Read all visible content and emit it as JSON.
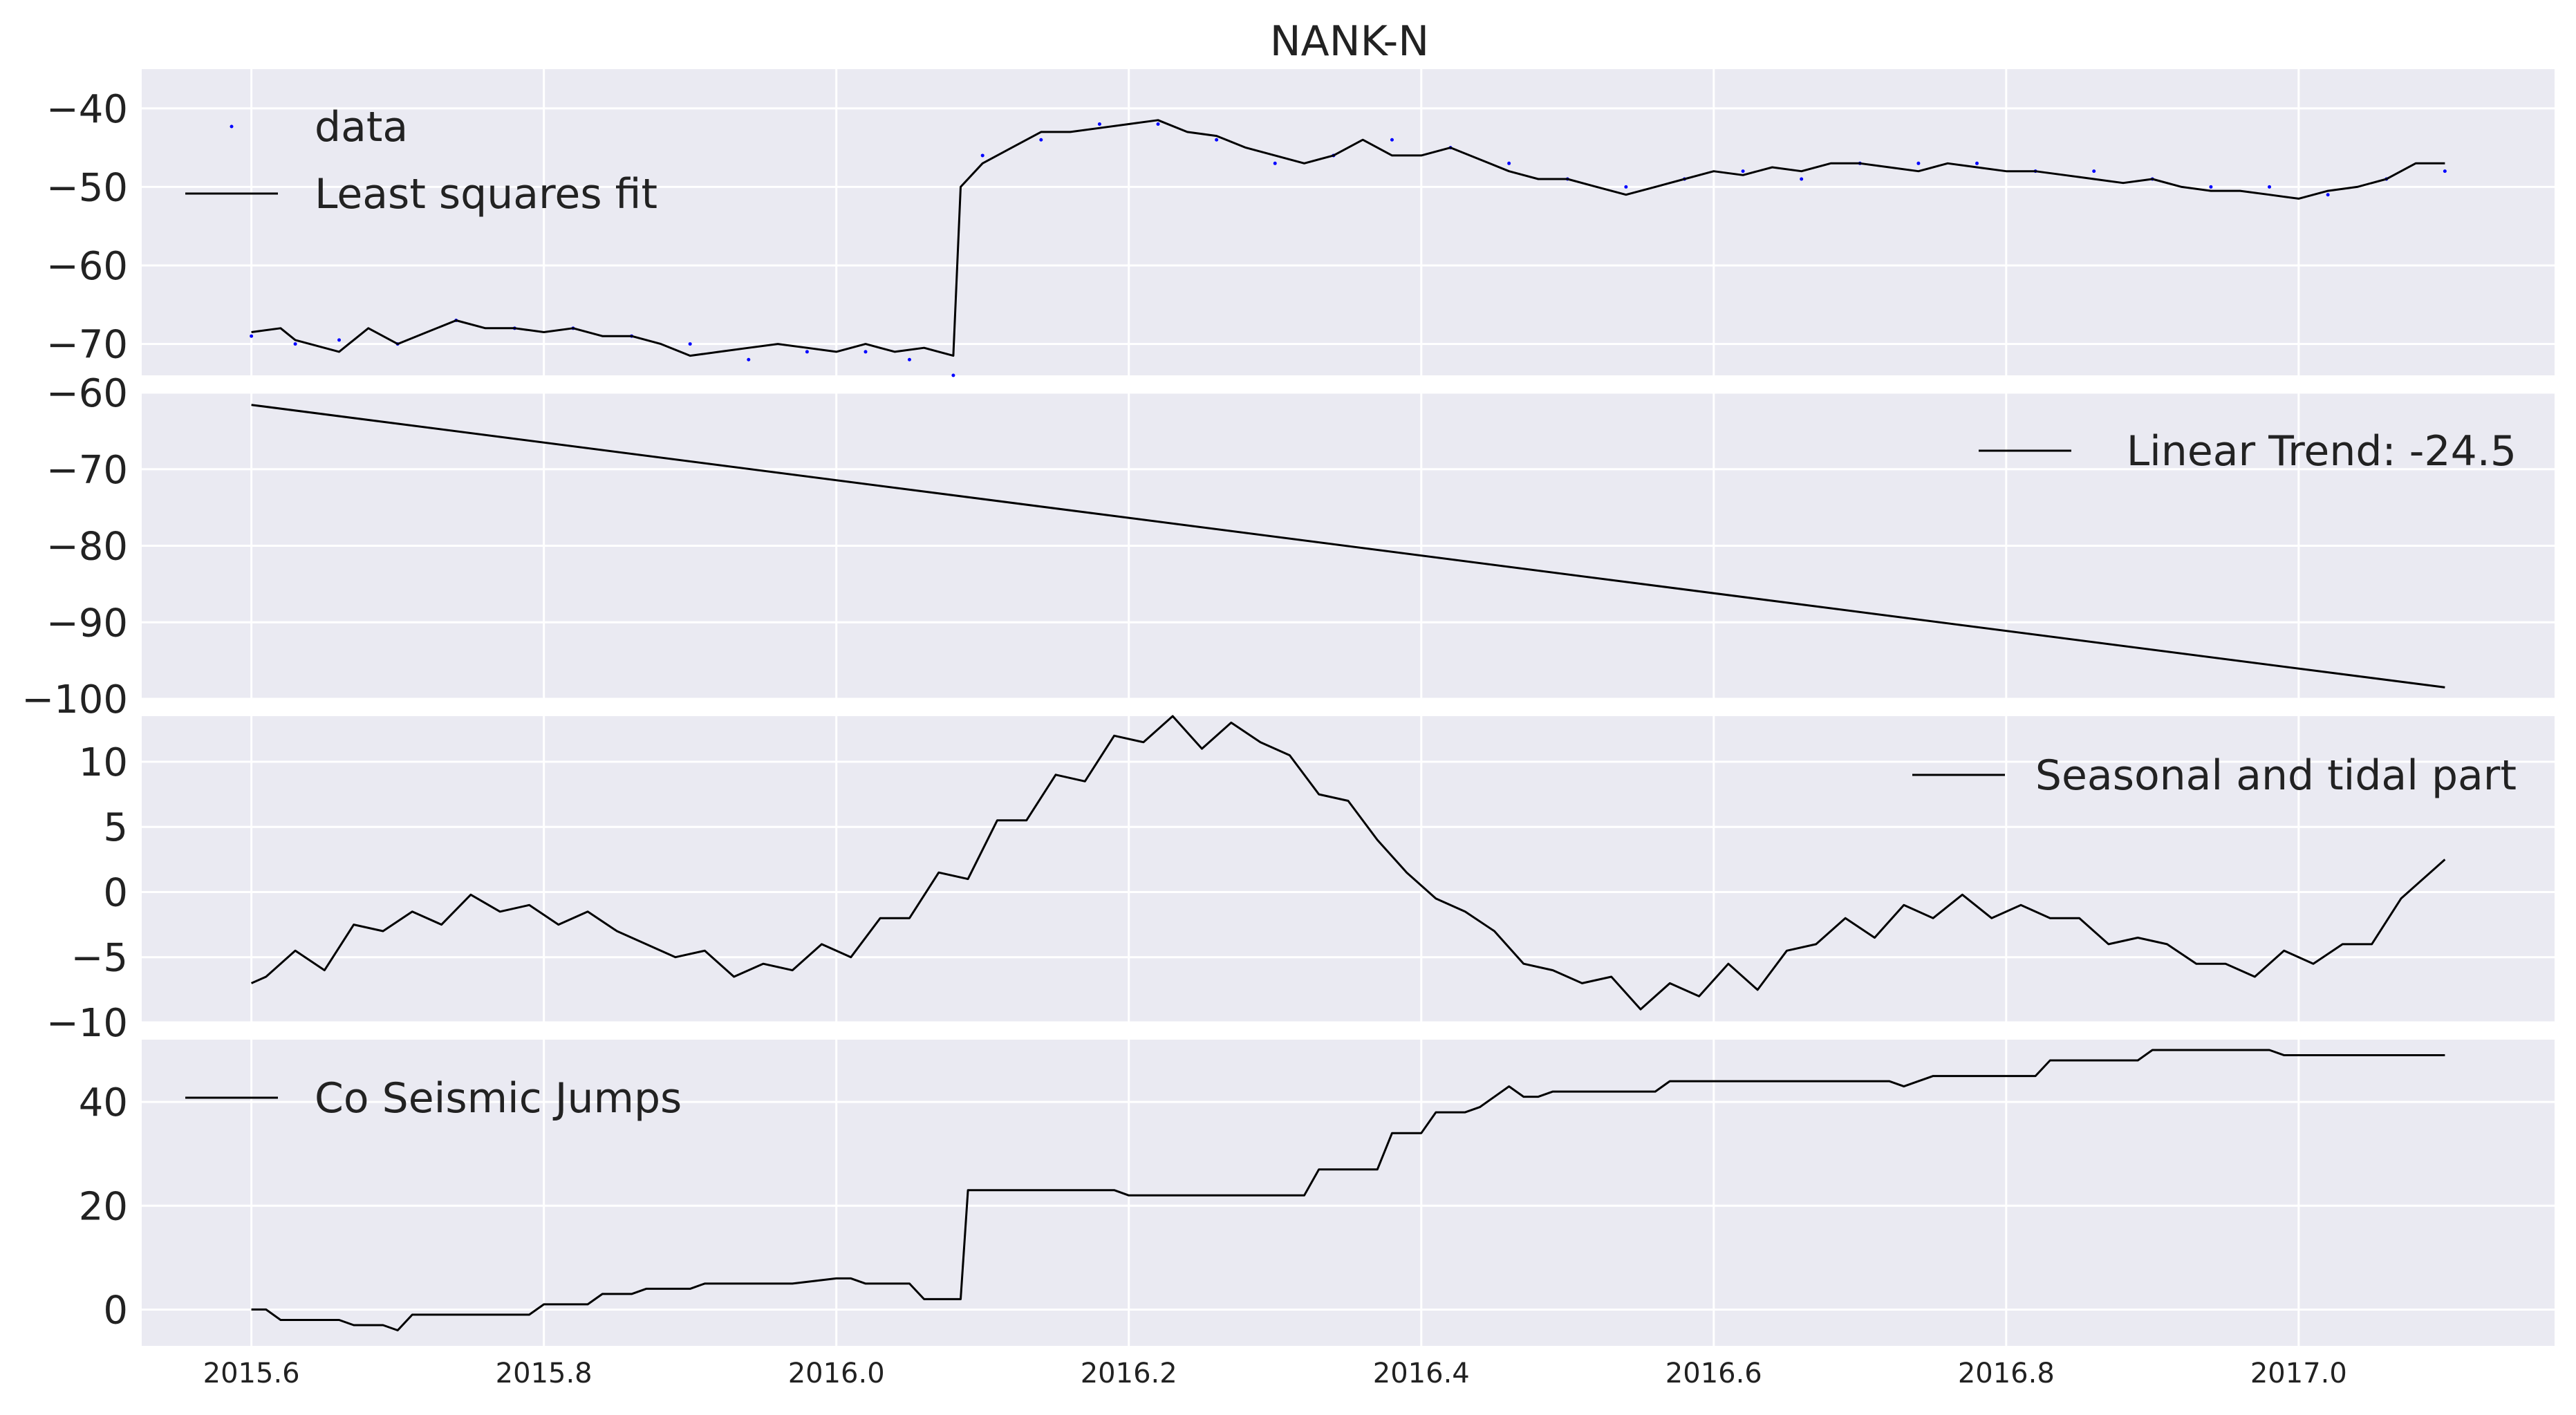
{
  "chart_data": {
    "title": "NANK-N",
    "type": "line",
    "x_ticks": [
      2015.6,
      2015.8,
      2016.0,
      2016.2,
      2016.4,
      2016.6,
      2016.8,
      2017.0
    ],
    "x_tick_labels": [
      "2015.6",
      "2015.8",
      "2016.0",
      "2016.2",
      "2016.4",
      "2016.6",
      "2016.8",
      "2017.0"
    ],
    "xlim": [
      2015.525,
      2017.175
    ],
    "grid": true,
    "panels": [
      {
        "ylim": [
          -74,
          -35
        ],
        "yticks": [
          -40,
          -50,
          -60,
          -70
        ],
        "ytick_labels": [
          "−40",
          "−50",
          "−60",
          "−70"
        ],
        "legend_position": "upper-left",
        "series": [
          {
            "name": "data",
            "kind": "scatter",
            "color": "#0000ff",
            "x": [
              2015.6,
              2015.63,
              2015.66,
              2015.7,
              2015.74,
              2015.78,
              2015.82,
              2015.86,
              2015.9,
              2015.94,
              2015.98,
              2016.02,
              2016.05,
              2016.08,
              2016.1,
              2016.14,
              2016.18,
              2016.22,
              2016.26,
              2016.3,
              2016.34,
              2016.38,
              2016.42,
              2016.46,
              2016.5,
              2016.54,
              2016.58,
              2016.62,
              2016.66,
              2016.7,
              2016.74,
              2016.78,
              2016.82,
              2016.86,
              2016.9,
              2016.94,
              2016.98,
              2017.02,
              2017.06,
              2017.1
            ],
            "y": [
              -69,
              -70,
              -69.5,
              -70,
              -67,
              -68,
              -68,
              -69,
              -70,
              -72,
              -71,
              -71,
              -72,
              -74,
              -46,
              -44,
              -42,
              -42,
              -44,
              -47,
              -46,
              -44,
              -45,
              -47,
              -49,
              -50,
              -49,
              -48,
              -49,
              -47,
              -47,
              -47,
              -48,
              -48,
              -49,
              -50,
              -50,
              -51,
              -49,
              -48
            ]
          },
          {
            "name": "Least squares fit",
            "kind": "line",
            "color": "#000000",
            "x": [
              2015.6,
              2015.62,
              2015.63,
              2015.66,
              2015.68,
              2015.7,
              2015.72,
              2015.74,
              2015.76,
              2015.78,
              2015.8,
              2015.82,
              2015.84,
              2015.86,
              2015.88,
              2015.9,
              2015.92,
              2015.94,
              2015.96,
              2015.98,
              2016.0,
              2016.02,
              2016.04,
              2016.06,
              2016.08,
              2016.085,
              2016.09,
              2016.1,
              2016.12,
              2016.14,
              2016.16,
              2016.18,
              2016.2,
              2016.22,
              2016.24,
              2016.26,
              2016.28,
              2016.3,
              2016.32,
              2016.34,
              2016.36,
              2016.38,
              2016.4,
              2016.42,
              2016.44,
              2016.46,
              2016.48,
              2016.5,
              2016.52,
              2016.54,
              2016.56,
              2016.58,
              2016.6,
              2016.62,
              2016.64,
              2016.66,
              2016.68,
              2016.7,
              2016.72,
              2016.74,
              2016.76,
              2016.78,
              2016.8,
              2016.82,
              2016.84,
              2016.86,
              2016.88,
              2016.9,
              2016.92,
              2016.94,
              2016.96,
              2016.98,
              2017.0,
              2017.02,
              2017.04,
              2017.06,
              2017.08,
              2017.1
            ],
            "y": [
              -68.5,
              -68,
              -69.5,
              -71,
              -68,
              -70,
              -68.5,
              -67,
              -68,
              -68,
              -68.5,
              -68,
              -69,
              -69,
              -70,
              -71.5,
              -71,
              -70.5,
              -70,
              -70.5,
              -71,
              -70,
              -71,
              -70.5,
              -71.5,
              -50,
              -49,
              -47,
              -45,
              -43,
              -43,
              -42.5,
              -42,
              -41.5,
              -43,
              -43.5,
              -45,
              -46,
              -47,
              -46,
              -44,
              -46,
              -46,
              -45,
              -46.5,
              -48,
              -49,
              -49,
              -50,
              -51,
              -50,
              -49,
              -48,
              -48.5,
              -47.5,
              -48,
              -47,
              -47,
              -47.5,
              -48,
              -47,
              -47.5,
              -48,
              -48,
              -48.5,
              -49,
              -49.5,
              -49,
              -50,
              -50.5,
              -50.5,
              -51,
              -51.5,
              -50.5,
              -50,
              -49,
              -47,
              -47
            ]
          }
        ]
      },
      {
        "ylim": [
          -100,
          -60
        ],
        "yticks": [
          -60,
          -70,
          -80,
          -90,
          -100
        ],
        "ytick_labels": [
          "−60",
          "−70",
          "−80",
          "−90",
          "−100"
        ],
        "legend_position": "upper-right",
        "series": [
          {
            "name": "Linear Trend: -24.5",
            "kind": "line",
            "color": "#000000",
            "x": [
              2015.6,
              2017.1
            ],
            "y": [
              -61.6,
              -98.5
            ]
          }
        ]
      },
      {
        "ylim": [
          -10,
          13.5
        ],
        "yticks": [
          10,
          5,
          0,
          -5,
          -10
        ],
        "ytick_labels": [
          "10",
          "5",
          "0",
          "−5",
          "−10"
        ],
        "legend_position": "upper-right",
        "series": [
          {
            "name": "Seasonal and tidal part",
            "kind": "line",
            "color": "#000000",
            "x": [
              2015.6,
              2015.61,
              2015.63,
              2015.65,
              2015.67,
              2015.69,
              2015.71,
              2015.73,
              2015.75,
              2015.77,
              2015.79,
              2015.81,
              2015.83,
              2015.85,
              2015.87,
              2015.89,
              2015.91,
              2015.93,
              2015.95,
              2015.97,
              2015.99,
              2016.01,
              2016.03,
              2016.05,
              2016.07,
              2016.09,
              2016.11,
              2016.13,
              2016.15,
              2016.17,
              2016.19,
              2016.21,
              2016.23,
              2016.25,
              2016.27,
              2016.29,
              2016.31,
              2016.33,
              2016.35,
              2016.37,
              2016.39,
              2016.41,
              2016.43,
              2016.45,
              2016.47,
              2016.49,
              2016.51,
              2016.53,
              2016.55,
              2016.57,
              2016.59,
              2016.61,
              2016.63,
              2016.65,
              2016.67,
              2016.69,
              2016.71,
              2016.73,
              2016.75,
              2016.77,
              2016.79,
              2016.81,
              2016.83,
              2016.85,
              2016.87,
              2016.89,
              2016.91,
              2016.93,
              2016.95,
              2016.97,
              2016.99,
              2017.01,
              2017.03,
              2017.05,
              2017.07,
              2017.09,
              2017.1
            ],
            "y": [
              -7,
              -6.5,
              -4.5,
              -6,
              -2.5,
              -3,
              -1.5,
              -2.5,
              -0.2,
              -1.5,
              -1,
              -2.5,
              -1.5,
              -3,
              -4,
              -5,
              -4.5,
              -6.5,
              -5.5,
              -6,
              -4,
              -5,
              -2,
              -2,
              1.5,
              1,
              5.5,
              5.5,
              9,
              8.5,
              12,
              11.5,
              13.5,
              11,
              13,
              11.5,
              10.5,
              7.5,
              7,
              4,
              1.5,
              -0.5,
              -1.5,
              -3,
              -5.5,
              -6,
              -7,
              -6.5,
              -9,
              -7,
              -8,
              -5.5,
              -7.5,
              -4.5,
              -4,
              -2,
              -3.5,
              -1,
              -2,
              -0.2,
              -2,
              -1,
              -2,
              -2,
              -4,
              -3.5,
              -4,
              -5.5,
              -5.5,
              -6.5,
              -4.5,
              -5.5,
              -4,
              -4,
              -0.5,
              1.5,
              2.5
            ]
          }
        ]
      },
      {
        "ylim": [
          -7,
          52
        ],
        "yticks": [
          40,
          20,
          0
        ],
        "ytick_labels": [
          "40",
          "20",
          "0"
        ],
        "legend_position": "upper-left",
        "series": [
          {
            "name": "Co Seismic Jumps",
            "kind": "line",
            "color": "#000000",
            "x": [
              2015.6,
              2015.61,
              2015.62,
              2015.66,
              2015.67,
              2015.69,
              2015.7,
              2015.71,
              2015.72,
              2015.79,
              2015.8,
              2015.83,
              2015.84,
              2015.86,
              2015.87,
              2015.9,
              2015.91,
              2015.96,
              2015.97,
              2016.0,
              2016.01,
              2016.02,
              2016.03,
              2016.05,
              2016.06,
              2016.085,
              2016.09,
              2016.19,
              2016.2,
              2016.32,
              2016.33,
              2016.37,
              2016.38,
              2016.4,
              2016.41,
              2016.43,
              2016.44,
              2016.46,
              2016.47,
              2016.48,
              2016.49,
              2016.56,
              2016.57,
              2016.6,
              2016.72,
              2016.73,
              2016.74,
              2016.75,
              2016.82,
              2016.83,
              2016.89,
              2016.9,
              2016.98,
              2016.99,
              2017.1
            ],
            "y": [
              0,
              0,
              -2,
              -2,
              -3,
              -3,
              -4,
              -1,
              -1,
              -1,
              1,
              1,
              3,
              3,
              4,
              4,
              5,
              5,
              5,
              6,
              6,
              5,
              5,
              5,
              2,
              2,
              23,
              23,
              22,
              22,
              27,
              27,
              34,
              34,
              38,
              38,
              39,
              43,
              41,
              41,
              42,
              42,
              44,
              44,
              44,
              43,
              44,
              45,
              45,
              48,
              48,
              50,
              50,
              49,
              49
            ]
          }
        ]
      }
    ]
  }
}
